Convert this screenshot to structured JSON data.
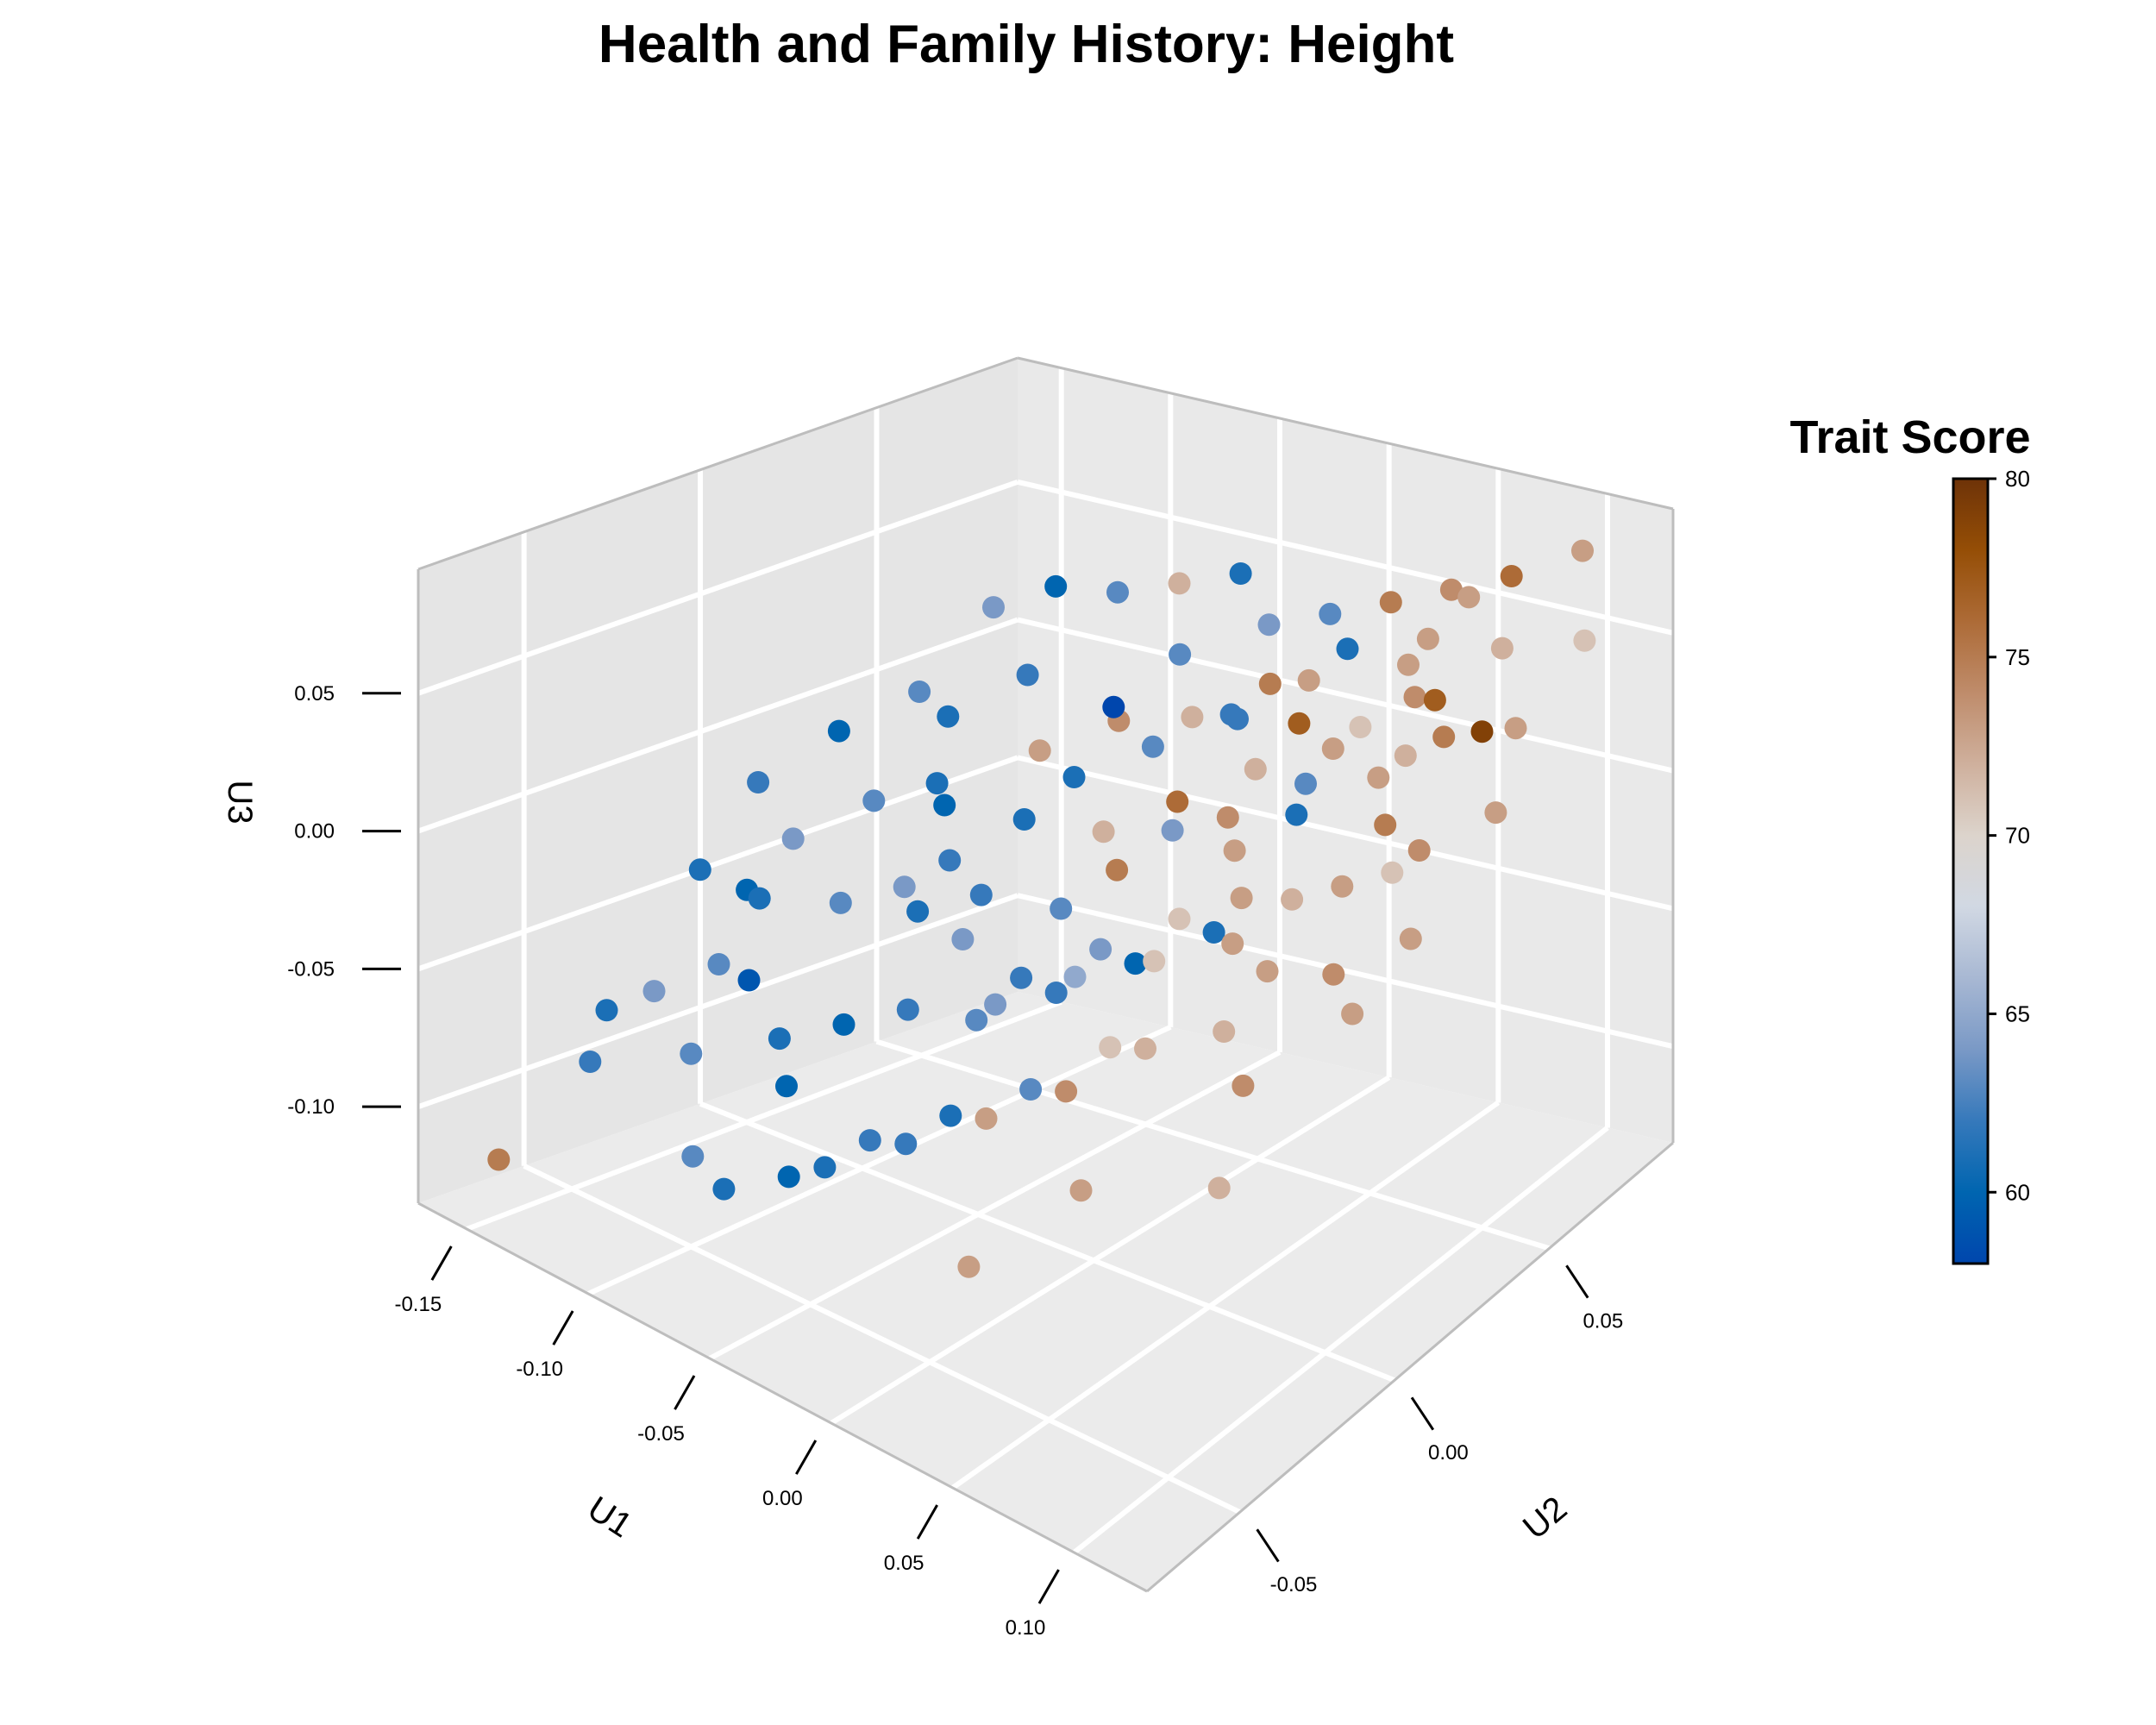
{
  "chart_data": {
    "type": "scatter",
    "title": "Health and Family History: Height",
    "xlabel": "U1",
    "ylabel": "U2",
    "zlabel": "U3",
    "xlim": [
      -0.17,
      0.13
    ],
    "ylim": [
      -0.08,
      0.09
    ],
    "zlim": [
      -0.135,
      0.095
    ],
    "x_ticks": [
      -0.15,
      -0.1,
      -0.05,
      0.0,
      0.05,
      0.1
    ],
    "x_tick_labels": [
      "-0.15",
      "-0.10",
      "-0.05",
      "0.00",
      "0.05",
      "0.10"
    ],
    "y_ticks": [
      -0.05,
      0.0,
      0.05
    ],
    "y_tick_labels": [
      "-0.05",
      "0.00",
      "0.05"
    ],
    "z_ticks": [
      -0.1,
      -0.05,
      0.0,
      0.05
    ],
    "z_tick_labels": [
      "-0.10",
      "-0.05",
      "0.00",
      "0.05"
    ],
    "grid": true,
    "legend": {
      "title": "Trait Score",
      "position": "right",
      "range": [
        58,
        80
      ],
      "ticks": [
        60,
        65,
        70,
        75,
        80
      ],
      "tick_labels": [
        "60",
        "65",
        "70",
        "75",
        "80"
      ],
      "colors": [
        "#0046ad",
        "#0065b0",
        "#3679bb",
        "#7a99c6",
        "#a8b8d3",
        "#d1d8e3",
        "#dcd4cc",
        "#cfb09d",
        "#bf8c6b",
        "#ad6b37",
        "#954e06",
        "#6e3308"
      ]
    },
    "points": [
      {
        "x": -0.16,
        "y": -0.064,
        "z": -0.122,
        "score": 75
      },
      {
        "x": 0.11,
        "y": 0.075,
        "z": 0.09,
        "score": 73
      },
      {
        "x": -0.02,
        "y": 0.02,
        "z": 0.045,
        "score": 58
      },
      {
        "x": 0.09,
        "y": 0.04,
        "z": 0.085,
        "score": 73
      },
      {
        "x": 0.1,
        "y": 0.035,
        "z": 0.07,
        "score": 77
      },
      {
        "x": 0.08,
        "y": 0.06,
        "z": 0.08,
        "score": 73
      },
      {
        "x": 0.06,
        "y": 0.055,
        "z": 0.055,
        "score": 73
      },
      {
        "x": 0.07,
        "y": 0.05,
        "z": 0.05,
        "score": 74
      },
      {
        "x": 0.09,
        "y": 0.045,
        "z": 0.045,
        "score": 75
      },
      {
        "x": 0.1,
        "y": 0.05,
        "z": 0.045,
        "score": 79
      },
      {
        "x": 0.08,
        "y": 0.04,
        "z": 0.04,
        "score": 72
      },
      {
        "x": 0.04,
        "y": 0.035,
        "z": 0.045,
        "score": 77
      },
      {
        "x": 0.02,
        "y": 0.03,
        "z": 0.045,
        "score": 62
      },
      {
        "x": 0.06,
        "y": 0.02,
        "z": 0.03,
        "score": 61
      },
      {
        "x": 0.05,
        "y": 0.03,
        "z": 0.03,
        "score": 63
      },
      {
        "x": 0.03,
        "y": 0.02,
        "z": 0.02,
        "score": 74
      },
      {
        "x": 0.04,
        "y": 0.015,
        "z": 0.015,
        "score": 73
      },
      {
        "x": 0.02,
        "y": 0.01,
        "z": 0.02,
        "score": 64
      },
      {
        "x": -0.01,
        "y": 0.01,
        "z": 0.01,
        "score": 72
      },
      {
        "x": 0.01,
        "y": 0.0,
        "z": 0.01,
        "score": 75
      },
      {
        "x": -0.03,
        "y": 0.0,
        "z": 0.015,
        "score": 61
      },
      {
        "x": -0.05,
        "y": -0.01,
        "z": 0.02,
        "score": 60
      },
      {
        "x": -0.02,
        "y": -0.02,
        "z": 0.005,
        "score": 62
      },
      {
        "x": 0.0,
        "y": -0.01,
        "z": 0.0,
        "score": 63
      },
      {
        "x": -0.04,
        "y": -0.025,
        "z": -0.005,
        "score": 61
      },
      {
        "x": -0.06,
        "y": -0.015,
        "z": -0.01,
        "score": 64
      },
      {
        "x": -0.08,
        "y": -0.02,
        "z": -0.02,
        "score": 63
      },
      {
        "x": -0.1,
        "y": -0.03,
        "z": -0.02,
        "score": 61
      },
      {
        "x": -0.12,
        "y": -0.02,
        "z": -0.03,
        "score": 60
      },
      {
        "x": -0.11,
        "y": -0.035,
        "z": -0.045,
        "score": 63
      },
      {
        "x": -0.09,
        "y": -0.04,
        "z": -0.04,
        "score": 59
      },
      {
        "x": -0.07,
        "y": -0.045,
        "z": -0.05,
        "score": 61
      },
      {
        "x": -0.05,
        "y": -0.04,
        "z": -0.04,
        "score": 60
      },
      {
        "x": -0.03,
        "y": -0.035,
        "z": -0.03,
        "score": 62
      },
      {
        "x": 0.0,
        "y": -0.03,
        "z": -0.02,
        "score": 64
      },
      {
        "x": 0.02,
        "y": -0.02,
        "z": -0.01,
        "score": 65
      },
      {
        "x": 0.04,
        "y": -0.01,
        "z": -0.005,
        "score": 71
      },
      {
        "x": 0.06,
        "y": 0.0,
        "z": 0.0,
        "score": 73
      },
      {
        "x": 0.05,
        "y": -0.02,
        "z": -0.025,
        "score": 72
      },
      {
        "x": 0.03,
        "y": -0.03,
        "z": -0.04,
        "score": 74
      },
      {
        "x": 0.01,
        "y": -0.04,
        "z": -0.05,
        "score": 73
      },
      {
        "x": -0.01,
        "y": -0.05,
        "z": -0.06,
        "score": 62
      },
      {
        "x": -0.03,
        "y": -0.06,
        "z": -0.07,
        "score": 61
      },
      {
        "x": -0.06,
        "y": -0.05,
        "z": -0.06,
        "score": 60
      },
      {
        "x": -0.1,
        "y": -0.05,
        "z": -0.065,
        "score": 63
      },
      {
        "x": -0.13,
        "y": -0.04,
        "z": -0.06,
        "score": 64
      },
      {
        "x": -0.14,
        "y": -0.02,
        "z": -0.03,
        "score": 61
      },
      {
        "x": 0.08,
        "y": 0.02,
        "z": 0.01,
        "score": 73
      },
      {
        "x": 0.1,
        "y": 0.03,
        "z": 0.02,
        "score": 74
      },
      {
        "x": 0.11,
        "y": 0.02,
        "z": 0.0,
        "score": 73
      },
      {
        "x": 0.12,
        "y": 0.04,
        "z": 0.03,
        "score": 73
      },
      {
        "x": 0.09,
        "y": 0.01,
        "z": -0.01,
        "score": 74
      },
      {
        "x": 0.07,
        "y": -0.01,
        "z": -0.02,
        "score": 72
      },
      {
        "x": 0.05,
        "y": -0.04,
        "z": -0.06,
        "score": 73
      },
      {
        "x": 0.03,
        "y": -0.06,
        "z": -0.08,
        "score": 73
      },
      {
        "x": -0.02,
        "y": 0.04,
        "z": 0.05,
        "score": 63
      },
      {
        "x": 0.0,
        "y": 0.03,
        "z": 0.04,
        "score": 72
      },
      {
        "x": 0.02,
        "y": 0.04,
        "z": 0.05,
        "score": 75
      },
      {
        "x": 0.04,
        "y": 0.05,
        "z": 0.06,
        "score": 61
      },
      {
        "x": 0.06,
        "y": 0.04,
        "z": 0.045,
        "score": 71
      },
      {
        "x": 0.075,
        "y": 0.035,
        "z": 0.035,
        "score": 73
      },
      {
        "x": 0.085,
        "y": 0.03,
        "z": 0.025,
        "score": 75
      },
      {
        "x": 0.095,
        "y": 0.025,
        "z": 0.015,
        "score": 71
      },
      {
        "x": 0.065,
        "y": 0.015,
        "z": 0.005,
        "score": 72
      },
      {
        "x": 0.045,
        "y": 0.005,
        "z": -0.005,
        "score": 61
      },
      {
        "x": 0.025,
        "y": -0.005,
        "z": -0.015,
        "score": 60
      },
      {
        "x": 0.005,
        "y": -0.015,
        "z": -0.025,
        "score": 62
      },
      {
        "x": -0.015,
        "y": -0.025,
        "z": -0.035,
        "score": 63
      },
      {
        "x": -0.035,
        "y": -0.015,
        "z": -0.02,
        "score": 64
      },
      {
        "x": -0.055,
        "y": -0.005,
        "z": -0.005,
        "score": 62
      },
      {
        "x": -0.075,
        "y": 0.005,
        "z": 0.01,
        "score": 61
      },
      {
        "x": -0.095,
        "y": 0.0,
        "z": 0.0,
        "score": 63
      },
      {
        "x": -0.115,
        "y": -0.01,
        "z": -0.015,
        "score": 64
      },
      {
        "x": -0.045,
        "y": 0.015,
        "z": 0.025,
        "score": 73
      },
      {
        "x": -0.025,
        "y": 0.025,
        "z": 0.035,
        "score": 74
      },
      {
        "x": 0.015,
        "y": 0.015,
        "z": 0.025,
        "score": 76
      },
      {
        "x": 0.035,
        "y": 0.025,
        "z": 0.035,
        "score": 72
      },
      {
        "x": 0.055,
        "y": 0.035,
        "z": 0.04,
        "score": 73
      },
      {
        "x": 0.035,
        "y": -0.02,
        "z": -0.03,
        "score": 71
      },
      {
        "x": 0.015,
        "y": -0.03,
        "z": -0.045,
        "score": 63
      },
      {
        "x": -0.005,
        "y": -0.04,
        "z": -0.055,
        "score": 61
      },
      {
        "x": -0.025,
        "y": -0.05,
        "z": -0.065,
        "score": 62
      },
      {
        "x": -0.045,
        "y": -0.06,
        "z": -0.08,
        "score": 60
      },
      {
        "x": -0.065,
        "y": -0.065,
        "z": -0.09,
        "score": 61
      },
      {
        "x": -0.085,
        "y": -0.06,
        "z": -0.09,
        "score": 63
      },
      {
        "x": -0.135,
        "y": -0.055,
        "z": -0.08,
        "score": 62
      },
      {
        "x": -0.15,
        "y": -0.04,
        "z": -0.075,
        "score": 61
      },
      {
        "x": 0.065,
        "y": 0.065,
        "z": 0.075,
        "score": 74
      },
      {
        "x": 0.085,
        "y": 0.07,
        "z": 0.08,
        "score": 76
      },
      {
        "x": 0.095,
        "y": 0.06,
        "z": 0.065,
        "score": 72
      },
      {
        "x": 0.045,
        "y": 0.06,
        "z": 0.07,
        "score": 75
      },
      {
        "x": 0.025,
        "y": 0.055,
        "z": 0.065,
        "score": 63
      },
      {
        "x": 0.005,
        "y": 0.05,
        "z": 0.06,
        "score": 64
      },
      {
        "x": -0.015,
        "y": 0.055,
        "z": 0.07,
        "score": 61
      },
      {
        "x": -0.035,
        "y": 0.05,
        "z": 0.065,
        "score": 72
      },
      {
        "x": -0.055,
        "y": 0.045,
        "z": 0.06,
        "score": 63
      },
      {
        "x": -0.075,
        "y": 0.04,
        "z": 0.06,
        "score": 60
      },
      {
        "x": -0.095,
        "y": 0.035,
        "z": 0.05,
        "score": 64
      },
      {
        "x": -0.065,
        "y": 0.025,
        "z": 0.04,
        "score": 62
      },
      {
        "x": -0.085,
        "y": 0.015,
        "z": 0.025,
        "score": 61
      },
      {
        "x": -0.105,
        "y": 0.02,
        "z": 0.025,
        "score": 63
      },
      {
        "x": -0.125,
        "y": 0.01,
        "z": 0.01,
        "score": 60
      },
      {
        "x": -0.145,
        "y": 0.0,
        "z": -0.01,
        "score": 62
      },
      {
        "x": 0.075,
        "y": 0.0,
        "z": -0.005,
        "score": 73
      },
      {
        "x": 0.085,
        "y": -0.015,
        "z": -0.03,
        "score": 74
      },
      {
        "x": 0.095,
        "y": -0.03,
        "z": -0.05,
        "score": 72
      },
      {
        "x": 0.105,
        "y": 0.005,
        "z": -0.015,
        "score": 73
      },
      {
        "x": 0.115,
        "y": 0.05,
        "z": 0.05,
        "score": 73
      },
      {
        "x": 0.125,
        "y": 0.065,
        "z": 0.07,
        "score": 71
      },
      {
        "x": 0.03,
        "y": 0.045,
        "z": 0.05,
        "score": 73
      },
      {
        "x": 0.01,
        "y": 0.035,
        "z": 0.04,
        "score": 62
      },
      {
        "x": -0.01,
        "y": 0.025,
        "z": 0.03,
        "score": 63
      },
      {
        "x": -0.03,
        "y": 0.015,
        "z": 0.02,
        "score": 61
      },
      {
        "x": 0.05,
        "y": 0.01,
        "z": 0.005,
        "score": 73
      },
      {
        "x": 0.03,
        "y": 0.005,
        "z": -0.005,
        "score": 71
      },
      {
        "x": 0.01,
        "y": -0.005,
        "z": -0.015,
        "score": 64
      },
      {
        "x": -0.01,
        "y": -0.015,
        "z": -0.025,
        "score": 62
      }
    ]
  }
}
